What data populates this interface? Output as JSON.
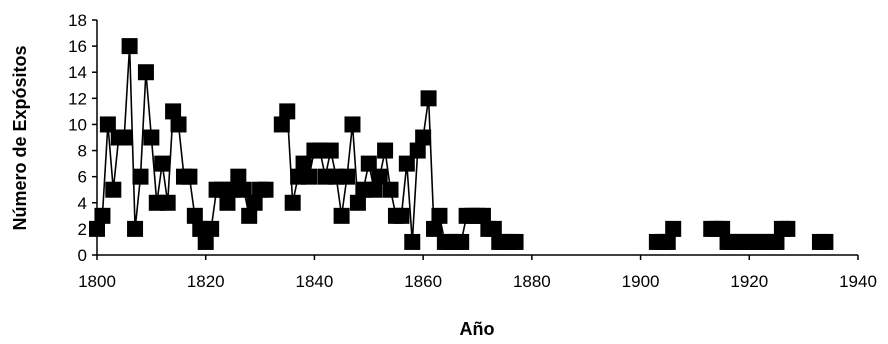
{
  "chart_data": {
    "type": "line",
    "title": "",
    "xlabel": "Año",
    "ylabel": "Número de Expósitos",
    "xlim": [
      1800,
      1940
    ],
    "ylim": [
      0,
      18
    ],
    "xticks": [
      1800,
      1820,
      1840,
      1860,
      1880,
      1900,
      1920,
      1940
    ],
    "yticks": [
      0,
      2,
      4,
      6,
      8,
      10,
      12,
      14,
      16,
      18
    ],
    "grid": false,
    "marker": "square",
    "line_color": "#000000",
    "marker_color": "#000000",
    "series": [
      {
        "x": [
          1800,
          1801,
          1802,
          1803,
          1804,
          1805,
          1806,
          1807,
          1808,
          1809,
          1810,
          1811,
          1812,
          1813,
          1814,
          1815,
          1816,
          1817,
          1818,
          1819,
          1820,
          1821,
          1822,
          1823,
          1824,
          1825,
          1826,
          1827,
          1828,
          1829,
          1830,
          1831,
          1832,
          1833,
          1834,
          1835,
          1836,
          1837,
          1838,
          1839,
          1840,
          1841,
          1842,
          1843,
          1844,
          1845,
          1846,
          1847,
          1848,
          1849,
          1850,
          1851,
          1852,
          1853,
          1854,
          1855,
          1856,
          1857,
          1858,
          1859,
          1860,
          1861,
          1862,
          1863,
          1864,
          1865,
          1866,
          1867,
          1868,
          1869,
          1870,
          1871,
          1872,
          1873,
          1874,
          1875,
          1876,
          1877
        ],
        "y": [
          2,
          3,
          10,
          5,
          9,
          9,
          16,
          2,
          6,
          14,
          9,
          4,
          7,
          4,
          11,
          10,
          6,
          6,
          3,
          2,
          1,
          2,
          5,
          5,
          4,
          5,
          6,
          5,
          3,
          4,
          5,
          5,
          null,
          null,
          10,
          11,
          4,
          6,
          7,
          6,
          8,
          8,
          6,
          8,
          6,
          3,
          6,
          10,
          4,
          5,
          7,
          5,
          6,
          8,
          5,
          3,
          3,
          7,
          1,
          8,
          9,
          12,
          2,
          3,
          1,
          1,
          1,
          1,
          3,
          3,
          3,
          3,
          2,
          2,
          1,
          1,
          1,
          1
        ]
      },
      {
        "x": [
          1903,
          1904,
          1905,
          1906
        ],
        "y": [
          1,
          1,
          1,
          2
        ]
      },
      {
        "x": [
          1913,
          1914,
          1915,
          1916,
          1917,
          1918,
          1919,
          1920,
          1921,
          1922,
          1923,
          1924,
          1925,
          1926,
          1927
        ],
        "y": [
          2,
          2,
          2,
          1,
          1,
          1,
          1,
          1,
          1,
          1,
          1,
          1,
          1,
          2,
          2
        ]
      },
      {
        "x": [
          1933,
          1934
        ],
        "y": [
          1,
          1
        ]
      }
    ]
  }
}
